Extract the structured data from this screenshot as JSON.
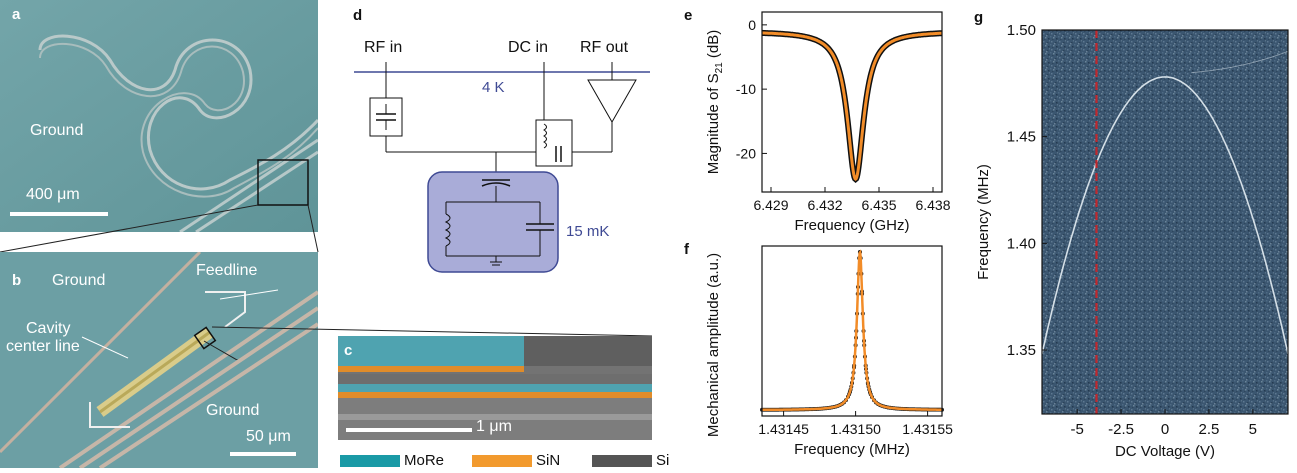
{
  "panels": {
    "a": {
      "label": "a",
      "ground_label": "Ground",
      "scalebar_label": "400 μm"
    },
    "b": {
      "label": "b",
      "ground_top": "Ground",
      "feedline": "Feedline",
      "cavity_line1": "Cavity",
      "cavity_line2": "center line",
      "ground_bottom": "Ground",
      "scalebar_label": "50 μm"
    },
    "c": {
      "label": "c",
      "scalebar_label": "1 μm",
      "legend": [
        {
          "name": "MoRe",
          "color": "#1a9aa6"
        },
        {
          "name": "SiN",
          "color": "#f29a2e"
        },
        {
          "name": "Si",
          "color": "#5a5a5a"
        }
      ]
    },
    "d": {
      "label": "d",
      "rf_in": "RF in",
      "dc_in": "DC in",
      "rf_out": "RF out",
      "temp_4k": "4 K",
      "temp_15mk": "15 mK"
    },
    "e": {
      "label": "e"
    },
    "f": {
      "label": "f"
    },
    "g": {
      "label": "g"
    }
  },
  "colors": {
    "sem_teal": "#6a9ea3",
    "fit_orange": "#f28c28",
    "circuit_blue": "#3f4a94",
    "resonator_fill": "#a9acd8",
    "dashed_red": "#c0282d"
  },
  "chart_data": [
    {
      "id": "e",
      "type": "line",
      "xlabel": "Frequency (GHz)",
      "ylabel_main": "Magnitude of S",
      "ylabel_sub": "21",
      "ylabel_unit": " (dB)",
      "xlim": [
        6.4285,
        6.4385
      ],
      "ylim": [
        -26,
        2
      ],
      "xticks": [
        6.429,
        6.432,
        6.435,
        6.438
      ],
      "xticklabels": [
        "6.429",
        "6.432",
        "6.435",
        "6.438"
      ],
      "yticks": [
        0,
        -10,
        -20
      ],
      "yticklabels": [
        "0",
        "-10",
        "-20"
      ],
      "resonance": {
        "f0": 6.4337,
        "depth_db": -24,
        "half_width": 0.00055,
        "baseline_db": -1
      }
    },
    {
      "id": "f",
      "type": "scatter",
      "xlabel": "Frequency (MHz)",
      "ylabel": "Mechanical amplitude (a.u.)",
      "xlim": [
        1.431435,
        1.43156
      ],
      "xticks": [
        1.43145,
        1.4315,
        1.43155
      ],
      "xticklabels": [
        "1.43145",
        "1.43150",
        "1.43155"
      ],
      "lorentzian": {
        "f0": 1.431503,
        "half_width": 2.5e-06
      }
    },
    {
      "id": "g",
      "type": "heatmap",
      "xlabel": "DC Voltage (V)",
      "ylabel": "Frequency (MHz)",
      "xlim": [
        -7,
        7
      ],
      "ylim": [
        1.32,
        1.5
      ],
      "xticks": [
        -5,
        -2.5,
        0,
        2.5,
        5
      ],
      "xticklabels": [
        "-5",
        "-2.5",
        "0",
        "2.5",
        "5"
      ],
      "yticks": [
        1.35,
        1.4,
        1.45,
        1.5
      ],
      "yticklabels": [
        "1.35",
        "1.40",
        "1.45",
        "1.50"
      ],
      "dashed_voltage": -3.9,
      "parabola": {
        "f_top": 1.478,
        "curvature": 0.00265
      }
    }
  ]
}
